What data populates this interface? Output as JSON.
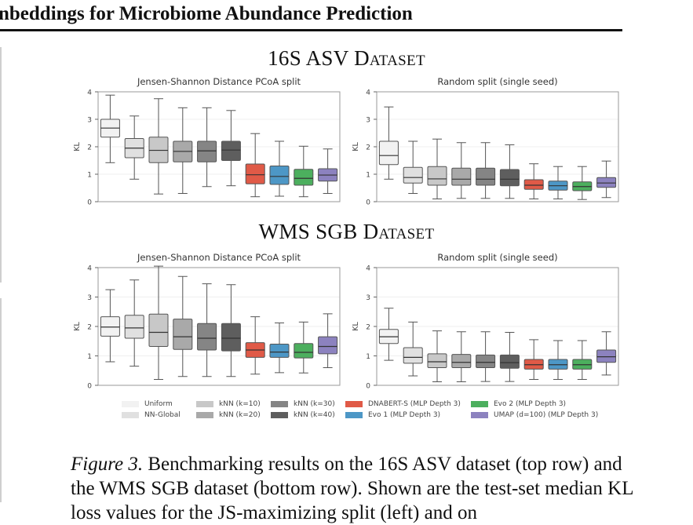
{
  "page": {
    "running_header": "nbeddings for Microbiome Abundance Prediction",
    "section_16s": {
      "pre": "16S ASV ",
      "caps": "Dataset"
    },
    "section_wms": {
      "pre": "WMS SGB ",
      "caps": "Dataset"
    },
    "caption_label": "Figure 3.",
    "caption_text": " Benchmarking results on the 16S ASV dataset (top row) and the WMS SGB dataset (bottom row). Shown are the test-set median KL loss values for the JS-maximizing split (left) and on"
  },
  "legend": [
    {
      "name": "Uniform",
      "color": "#f2f2f2"
    },
    {
      "name": "NN-Global",
      "color": "#e0e0e0"
    },
    {
      "name": "kNN (k=10)",
      "color": "#c8c8c8"
    },
    {
      "name": "kNN (k=20)",
      "color": "#a9a9a9"
    },
    {
      "name": "kNN (k=30)",
      "color": "#858585"
    },
    {
      "name": "kNN (k=40)",
      "color": "#5e5e5e"
    },
    {
      "name": "DNABERT-S (MLP Depth 3)",
      "color": "#e05a47"
    },
    {
      "name": "Evo 1 (MLP Depth 3)",
      "color": "#4d97c6"
    },
    {
      "name": "Evo 2 (MLP Depth 3)",
      "color": "#4caf5e"
    },
    {
      "name": "UMAP (d=100) (MLP Depth 3)",
      "color": "#8c82bf"
    }
  ],
  "chart_data": [
    {
      "type": "box",
      "title": "Jensen-Shannon Distance PCoA split",
      "ylabel": "KL",
      "ylim": [
        0,
        4
      ],
      "yticks": [
        0,
        1,
        2,
        3,
        4
      ],
      "series_order": [
        "Uniform",
        "NN-Global",
        "kNN (k=10)",
        "kNN (k=20)",
        "kNN (k=30)",
        "kNN (k=40)",
        "DNABERT-S (MLP Depth 3)",
        "Evo 1 (MLP Depth 3)",
        "Evo 2 (MLP Depth 3)",
        "UMAP (d=100) (MLP Depth 3)"
      ],
      "boxes": [
        {
          "whislo": 1.42,
          "q1": 2.35,
          "med": 2.68,
          "q3": 3.0,
          "whishi": 3.88
        },
        {
          "whislo": 0.82,
          "q1": 1.6,
          "med": 1.95,
          "q3": 2.3,
          "whishi": 3.12
        },
        {
          "whislo": 0.28,
          "q1": 1.42,
          "med": 1.87,
          "q3": 2.35,
          "whishi": 3.75
        },
        {
          "whislo": 0.3,
          "q1": 1.45,
          "med": 1.83,
          "q3": 2.2,
          "whishi": 3.42
        },
        {
          "whislo": 0.55,
          "q1": 1.45,
          "med": 1.85,
          "q3": 2.2,
          "whishi": 3.42
        },
        {
          "whislo": 0.58,
          "q1": 1.5,
          "med": 1.88,
          "q3": 2.2,
          "whishi": 3.32
        },
        {
          "whislo": 0.18,
          "q1": 0.65,
          "med": 0.98,
          "q3": 1.37,
          "whishi": 2.48
        },
        {
          "whislo": 0.2,
          "q1": 0.63,
          "med": 0.92,
          "q3": 1.3,
          "whishi": 2.2
        },
        {
          "whislo": 0.18,
          "q1": 0.6,
          "med": 0.85,
          "q3": 1.18,
          "whishi": 2.02
        },
        {
          "whislo": 0.3,
          "q1": 0.75,
          "med": 0.97,
          "q3": 1.2,
          "whishi": 1.92
        }
      ]
    },
    {
      "type": "box",
      "title": "Random split (single seed)",
      "ylabel": "KL",
      "ylim": [
        0,
        4
      ],
      "yticks": [
        0,
        1,
        2,
        3,
        4
      ],
      "series_order": [
        "Uniform",
        "NN-Global",
        "kNN (k=10)",
        "kNN (k=20)",
        "kNN (k=30)",
        "kNN (k=40)",
        "DNABERT-S (MLP Depth 3)",
        "Evo 1 (MLP Depth 3)",
        "Evo 2 (MLP Depth 3)",
        "UMAP (d=100) (MLP Depth 3)"
      ],
      "boxes": [
        {
          "whislo": 0.82,
          "q1": 1.35,
          "med": 1.68,
          "q3": 2.2,
          "whishi": 3.45
        },
        {
          "whislo": 0.3,
          "q1": 0.68,
          "med": 0.88,
          "q3": 1.25,
          "whishi": 2.2
        },
        {
          "whislo": 0.1,
          "q1": 0.6,
          "med": 0.83,
          "q3": 1.28,
          "whishi": 2.28
        },
        {
          "whislo": 0.12,
          "q1": 0.6,
          "med": 0.82,
          "q3": 1.22,
          "whishi": 2.15
        },
        {
          "whislo": 0.12,
          "q1": 0.6,
          "med": 0.82,
          "q3": 1.22,
          "whishi": 2.15
        },
        {
          "whislo": 0.12,
          "q1": 0.58,
          "med": 0.82,
          "q3": 1.17,
          "whishi": 2.07
        },
        {
          "whislo": 0.1,
          "q1": 0.45,
          "med": 0.6,
          "q3": 0.8,
          "whishi": 1.38
        },
        {
          "whislo": 0.1,
          "q1": 0.42,
          "med": 0.58,
          "q3": 0.75,
          "whishi": 1.28
        },
        {
          "whislo": 0.08,
          "q1": 0.4,
          "med": 0.55,
          "q3": 0.72,
          "whishi": 1.28
        },
        {
          "whislo": 0.15,
          "q1": 0.52,
          "med": 0.68,
          "q3": 0.88,
          "whishi": 1.48
        }
      ]
    },
    {
      "type": "box",
      "title": "Jensen-Shannon Distance PCoA split",
      "ylabel": "KL",
      "ylim": [
        0,
        4
      ],
      "yticks": [
        0,
        1,
        2,
        3,
        4
      ],
      "series_order": [
        "Uniform",
        "NN-Global",
        "kNN (k=10)",
        "kNN (k=20)",
        "kNN (k=30)",
        "kNN (k=40)",
        "DNABERT-S (MLP Depth 3)",
        "Evo 1 (MLP Depth 3)",
        "Evo 2 (MLP Depth 3)",
        "UMAP (d=100) (MLP Depth 3)"
      ],
      "boxes": [
        {
          "whislo": 0.8,
          "q1": 1.67,
          "med": 1.98,
          "q3": 2.33,
          "whishi": 3.25
        },
        {
          "whislo": 0.65,
          "q1": 1.6,
          "med": 1.95,
          "q3": 2.38,
          "whishi": 3.58
        },
        {
          "whislo": 0.2,
          "q1": 1.32,
          "med": 1.8,
          "q3": 2.42,
          "whishi": 4.05
        },
        {
          "whislo": 0.3,
          "q1": 1.22,
          "med": 1.65,
          "q3": 2.25,
          "whishi": 3.7
        },
        {
          "whislo": 0.3,
          "q1": 1.2,
          "med": 1.6,
          "q3": 2.1,
          "whishi": 3.45
        },
        {
          "whislo": 0.3,
          "q1": 1.17,
          "med": 1.6,
          "q3": 2.1,
          "whishi": 3.42
        },
        {
          "whislo": 0.38,
          "q1": 0.95,
          "med": 1.2,
          "q3": 1.45,
          "whishi": 2.33
        },
        {
          "whislo": 0.43,
          "q1": 0.95,
          "med": 1.13,
          "q3": 1.4,
          "whishi": 2.12
        },
        {
          "whislo": 0.42,
          "q1": 0.93,
          "med": 1.12,
          "q3": 1.42,
          "whishi": 2.15
        },
        {
          "whislo": 0.6,
          "q1": 1.07,
          "med": 1.32,
          "q3": 1.65,
          "whishi": 2.43
        }
      ]
    },
    {
      "type": "box",
      "title": "Random split (single seed)",
      "ylabel": "KL",
      "ylim": [
        0,
        4
      ],
      "yticks": [
        0,
        1,
        2,
        3,
        4
      ],
      "series_order": [
        "Uniform",
        "NN-Global",
        "kNN (k=10)",
        "kNN (k=20)",
        "kNN (k=30)",
        "kNN (k=40)",
        "DNABERT-S (MLP Depth 3)",
        "Evo 1 (MLP Depth 3)",
        "Evo 2 (MLP Depth 3)",
        "UMAP (d=100) (MLP Depth 3)"
      ],
      "boxes": [
        {
          "whislo": 0.85,
          "q1": 1.42,
          "med": 1.65,
          "q3": 1.9,
          "whishi": 2.62
        },
        {
          "whislo": 0.32,
          "q1": 0.75,
          "med": 0.95,
          "q3": 1.28,
          "whishi": 2.15
        },
        {
          "whislo": 0.12,
          "q1": 0.6,
          "med": 0.8,
          "q3": 1.07,
          "whishi": 1.85
        },
        {
          "whislo": 0.12,
          "q1": 0.6,
          "med": 0.78,
          "q3": 1.05,
          "whishi": 1.82
        },
        {
          "whislo": 0.13,
          "q1": 0.6,
          "med": 0.78,
          "q3": 1.03,
          "whishi": 1.82
        },
        {
          "whislo": 0.13,
          "q1": 0.58,
          "med": 0.77,
          "q3": 1.03,
          "whishi": 1.8
        },
        {
          "whislo": 0.2,
          "q1": 0.55,
          "med": 0.7,
          "q3": 0.88,
          "whishi": 1.55
        },
        {
          "whislo": 0.2,
          "q1": 0.55,
          "med": 0.7,
          "q3": 0.88,
          "whishi": 1.52
        },
        {
          "whislo": 0.2,
          "q1": 0.55,
          "med": 0.7,
          "q3": 0.88,
          "whishi": 1.52
        },
        {
          "whislo": 0.35,
          "q1": 0.78,
          "med": 0.97,
          "q3": 1.2,
          "whishi": 1.82
        }
      ]
    }
  ]
}
